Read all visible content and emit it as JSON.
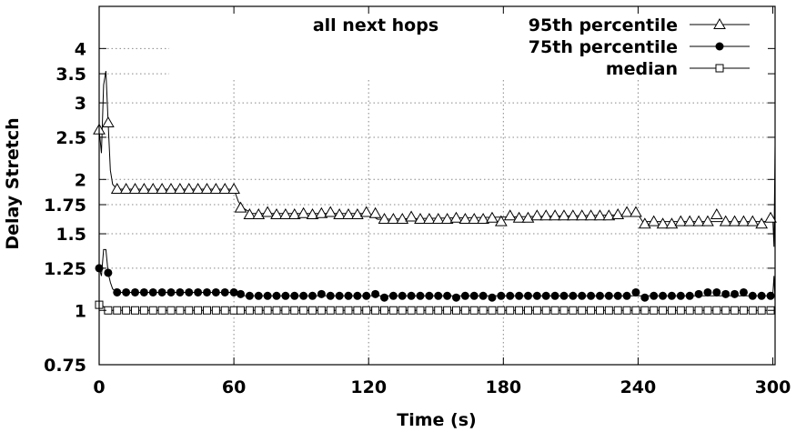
{
  "chart_data": {
    "type": "line",
    "title": "all next hops",
    "xlabel": "Time (s)",
    "ylabel": "Delay Stretch",
    "xlim": [
      0,
      301
    ],
    "ylim": [
      0.75,
      5
    ],
    "log_y": true,
    "grid": true,
    "legend_position": "top-right",
    "x_ticks": [
      0,
      60,
      120,
      180,
      240,
      300
    ],
    "x_tick_labels": [
      "0",
      "60",
      "120",
      "180",
      "240",
      "300"
    ],
    "y_ticks": [
      0.75,
      1,
      1.25,
      1.5,
      1.75,
      2,
      2.5,
      3,
      3.5,
      4
    ],
    "y_tick_labels": [
      "0.75",
      "1",
      "1.25",
      "1.5",
      "1.75",
      "2",
      "2.5",
      "3",
      "3.5",
      "4"
    ],
    "series": [
      {
        "name": "95th percentile",
        "marker": "triangle-open",
        "line": [
          [
            0,
            2.6
          ],
          [
            1,
            2.3
          ],
          [
            2,
            3.3
          ],
          [
            3,
            3.55
          ],
          [
            4,
            2.7
          ],
          [
            5,
            2.1
          ],
          [
            6,
            1.95
          ],
          [
            8,
            1.9
          ],
          [
            60,
            1.9
          ],
          [
            62,
            1.78
          ],
          [
            64,
            1.72
          ],
          [
            68,
            1.67
          ],
          [
            120,
            1.67
          ],
          [
            124,
            1.62
          ],
          [
            240,
            1.66
          ],
          [
            242,
            1.6
          ],
          [
            298,
            1.6
          ],
          [
            300,
            1.63
          ],
          [
            300.5,
            1.4
          ],
          [
            301,
            2.4
          ]
        ],
        "marker_x": [
          0,
          4,
          8,
          12,
          16,
          20,
          24,
          28,
          32,
          36,
          40,
          44,
          48,
          52,
          56,
          60,
          63,
          67,
          71,
          75,
          79,
          83,
          87,
          91,
          95,
          99,
          103,
          107,
          111,
          115,
          119,
          123,
          127,
          131,
          135,
          139,
          143,
          147,
          151,
          155,
          159,
          163,
          167,
          171,
          175,
          179,
          183,
          187,
          191,
          195,
          199,
          203,
          207,
          211,
          215,
          219,
          223,
          227,
          231,
          235,
          239,
          243,
          247,
          251,
          255,
          259,
          263,
          267,
          271,
          275,
          279,
          283,
          287,
          291,
          295,
          299
        ],
        "marker_y": [
          2.6,
          2.7,
          1.9,
          1.9,
          1.9,
          1.9,
          1.9,
          1.9,
          1.9,
          1.9,
          1.9,
          1.9,
          1.9,
          1.9,
          1.9,
          1.9,
          1.72,
          1.66,
          1.66,
          1.68,
          1.66,
          1.66,
          1.66,
          1.67,
          1.66,
          1.67,
          1.68,
          1.66,
          1.66,
          1.66,
          1.68,
          1.67,
          1.62,
          1.62,
          1.62,
          1.64,
          1.62,
          1.62,
          1.62,
          1.62,
          1.63,
          1.62,
          1.62,
          1.62,
          1.63,
          1.6,
          1.65,
          1.63,
          1.63,
          1.65,
          1.65,
          1.65,
          1.65,
          1.65,
          1.65,
          1.65,
          1.65,
          1.65,
          1.66,
          1.68,
          1.68,
          1.58,
          1.6,
          1.58,
          1.58,
          1.6,
          1.6,
          1.6,
          1.6,
          1.66,
          1.6,
          1.6,
          1.6,
          1.6,
          1.58,
          1.63
        ]
      },
      {
        "name": "75th percentile",
        "marker": "circle-filled",
        "line": [
          [
            0,
            1.25
          ],
          [
            1,
            1.2
          ],
          [
            2,
            1.38
          ],
          [
            3,
            1.38
          ],
          [
            4,
            1.22
          ],
          [
            5,
            1.16
          ],
          [
            6,
            1.12
          ],
          [
            8,
            1.1
          ],
          [
            60,
            1.1
          ],
          [
            64,
            1.08
          ],
          [
            120,
            1.08
          ],
          [
            240,
            1.08
          ],
          [
            298,
            1.08
          ],
          [
            300,
            1.08
          ],
          [
            300.5,
            1.2
          ],
          [
            301,
            1.05
          ]
        ],
        "marker_x": [
          0,
          4,
          8,
          12,
          16,
          20,
          24,
          28,
          32,
          36,
          40,
          44,
          48,
          52,
          56,
          60,
          63,
          67,
          71,
          75,
          79,
          83,
          87,
          91,
          95,
          99,
          103,
          107,
          111,
          115,
          119,
          123,
          127,
          131,
          135,
          139,
          143,
          147,
          151,
          155,
          159,
          163,
          167,
          171,
          175,
          179,
          183,
          187,
          191,
          195,
          199,
          203,
          207,
          211,
          215,
          219,
          223,
          227,
          231,
          235,
          239,
          243,
          247,
          251,
          255,
          259,
          263,
          267,
          271,
          275,
          279,
          283,
          287,
          291,
          295,
          299
        ],
        "marker_y": [
          1.25,
          1.22,
          1.1,
          1.1,
          1.1,
          1.1,
          1.1,
          1.1,
          1.1,
          1.1,
          1.1,
          1.1,
          1.1,
          1.1,
          1.1,
          1.1,
          1.09,
          1.08,
          1.08,
          1.08,
          1.08,
          1.08,
          1.08,
          1.08,
          1.08,
          1.09,
          1.08,
          1.08,
          1.08,
          1.08,
          1.08,
          1.09,
          1.07,
          1.08,
          1.08,
          1.08,
          1.08,
          1.08,
          1.08,
          1.08,
          1.07,
          1.08,
          1.08,
          1.08,
          1.07,
          1.08,
          1.08,
          1.08,
          1.08,
          1.08,
          1.08,
          1.08,
          1.08,
          1.08,
          1.08,
          1.08,
          1.08,
          1.08,
          1.08,
          1.08,
          1.1,
          1.07,
          1.08,
          1.08,
          1.08,
          1.08,
          1.08,
          1.09,
          1.1,
          1.1,
          1.09,
          1.09,
          1.1,
          1.08,
          1.08,
          1.08
        ]
      },
      {
        "name": "median",
        "marker": "square-open",
        "line": [
          [
            0,
            1.03
          ],
          [
            2,
            1.02
          ],
          [
            4,
            1.0
          ],
          [
            300,
            1.0
          ],
          [
            300.5,
            1.0
          ],
          [
            301,
            1.0
          ]
        ],
        "marker_x": [
          0,
          4,
          8,
          12,
          16,
          20,
          24,
          28,
          32,
          36,
          40,
          44,
          48,
          52,
          56,
          60,
          63,
          67,
          71,
          75,
          79,
          83,
          87,
          91,
          95,
          99,
          103,
          107,
          111,
          115,
          119,
          123,
          127,
          131,
          135,
          139,
          143,
          147,
          151,
          155,
          159,
          163,
          167,
          171,
          175,
          179,
          183,
          187,
          191,
          195,
          199,
          203,
          207,
          211,
          215,
          219,
          223,
          227,
          231,
          235,
          239,
          243,
          247,
          251,
          255,
          259,
          263,
          267,
          271,
          275,
          279,
          283,
          287,
          291,
          295,
          299
        ],
        "marker_y": [
          1.03,
          1.0,
          1.0,
          1.0,
          1.0,
          1.0,
          1.0,
          1.0,
          1.0,
          1.0,
          1.0,
          1.0,
          1.0,
          1.0,
          1.0,
          1.0,
          1.0,
          1.0,
          1.0,
          1.0,
          1.0,
          1.0,
          1.0,
          1.0,
          1.0,
          1.0,
          1.0,
          1.0,
          1.0,
          1.0,
          1.0,
          1.0,
          1.0,
          1.0,
          1.0,
          1.0,
          1.0,
          1.0,
          1.0,
          1.0,
          1.0,
          1.0,
          1.0,
          1.0,
          1.0,
          1.0,
          1.0,
          1.0,
          1.0,
          1.0,
          1.0,
          1.0,
          1.0,
          1.0,
          1.0,
          1.0,
          1.0,
          1.0,
          1.0,
          1.0,
          1.0,
          1.0,
          1.0,
          1.0,
          1.0,
          1.0,
          1.0,
          1.0,
          1.0,
          1.0,
          1.0,
          1.0,
          1.0,
          1.0,
          1.0,
          1.0
        ]
      }
    ]
  }
}
